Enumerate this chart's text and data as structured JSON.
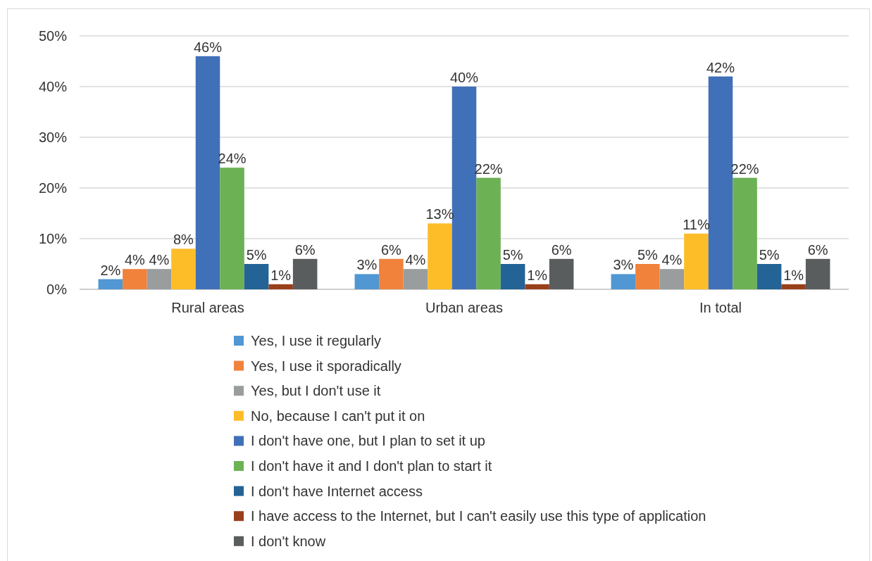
{
  "chart_data": {
    "type": "bar",
    "categories": [
      "Rural areas",
      "Urban areas",
      "In total"
    ],
    "series": [
      {
        "name": "Yes, I use it regularly",
        "color": "#5097d3",
        "values": [
          2,
          3,
          3
        ],
        "value_labels": [
          "2%",
          "3%",
          "3%"
        ]
      },
      {
        "name": "Yes, I use it sporadically",
        "color": "#f0823c",
        "values": [
          4,
          6,
          5
        ],
        "value_labels": [
          "4%",
          "6%",
          "5%"
        ]
      },
      {
        "name": "Yes, but I don't use it",
        "color": "#9a9d9e",
        "values": [
          4,
          4,
          4
        ],
        "value_labels": [
          "4%",
          "4%",
          "4%"
        ]
      },
      {
        "name": "No, because I can't put it on",
        "color": "#fdbd29",
        "values": [
          8,
          13,
          11
        ],
        "value_labels": [
          "8%",
          "13%",
          "11%"
        ]
      },
      {
        "name": "I don't have one, but I plan to set it up",
        "color": "#4070b8",
        "values": [
          46,
          40,
          42
        ],
        "value_labels": [
          "46%",
          "40%",
          "42%"
        ]
      },
      {
        "name": "I don't have it and I don't plan to start it",
        "color": "#6db155",
        "values": [
          24,
          22,
          22
        ],
        "value_labels": [
          "24%",
          "22%",
          "22%"
        ]
      },
      {
        "name": "I don't have Internet access",
        "color": "#236395",
        "values": [
          5,
          5,
          5
        ],
        "value_labels": [
          "5%",
          "5%",
          "5%"
        ]
      },
      {
        "name": "I have access to the Internet, but I can't easily use this type of application",
        "color": "#9a3f1c",
        "values": [
          1,
          1,
          1
        ],
        "value_labels": [
          "1%",
          "1%",
          "1%"
        ]
      },
      {
        "name": "I don't know",
        "color": "#5a5d5e",
        "values": [
          6,
          6,
          6
        ],
        "value_labels": [
          "6%",
          "6%",
          "6%"
        ]
      }
    ],
    "ylim": [
      0,
      50
    ],
    "yticks": [
      {
        "value": 0,
        "label": "0%"
      },
      {
        "value": 10,
        "label": "10%"
      },
      {
        "value": 20,
        "label": "20%"
      },
      {
        "value": 30,
        "label": "30%"
      },
      {
        "value": 40,
        "label": "40%"
      },
      {
        "value": 50,
        "label": "50%"
      }
    ],
    "grid": "y",
    "legend": "bottom"
  }
}
